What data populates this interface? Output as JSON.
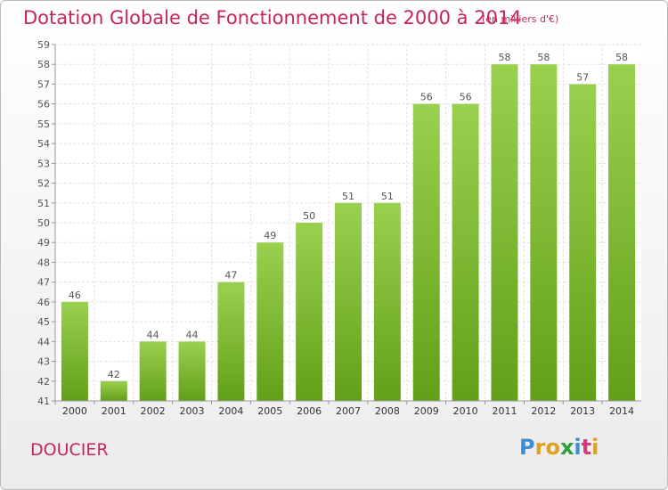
{
  "page": {
    "title": "Dotation Globale de Fonctionnement de 2000 à 2014",
    "subtitle": "(en milliers d'€)",
    "commune": "DOUCIER",
    "logo": {
      "letters": [
        "P",
        "r",
        "o",
        "x",
        "i",
        "t",
        "i"
      ],
      "colors": [
        "#3a8fd6",
        "#e0a020",
        "#e0a020",
        "#2e9e3a",
        "#3a8fd6",
        "#d63a7a",
        "#e0a020"
      ]
    }
  },
  "chart_data": {
    "type": "bar",
    "title": "Dotation Globale de Fonctionnement de 2000 à 2014",
    "subtitle": "(en milliers d'€)",
    "categories": [
      "2000",
      "2001",
      "2002",
      "2003",
      "2004",
      "2005",
      "2006",
      "2007",
      "2008",
      "2009",
      "2010",
      "2011",
      "2012",
      "2013",
      "2014"
    ],
    "values": [
      46,
      42,
      44,
      44,
      47,
      49,
      50,
      51,
      51,
      56,
      56,
      58,
      58,
      57,
      58
    ],
    "data_labels": [
      "46",
      "42",
      "44",
      "44",
      "47",
      "49",
      "50",
      "51",
      "51",
      "56",
      "56",
      "58",
      "58",
      "57",
      "58"
    ],
    "ylim": [
      41,
      59
    ],
    "yticks": [
      "41",
      "42",
      "43",
      "44",
      "45",
      "46",
      "47",
      "48",
      "49",
      "50",
      "51",
      "52",
      "53",
      "54",
      "55",
      "56",
      "57",
      "58",
      "59"
    ],
    "xlabel": "",
    "ylabel": "",
    "grid": true,
    "legend": "none",
    "colors": {
      "bar_top": "#9ad04f",
      "bar_bottom": "#62a019",
      "grid": "#e2e2e2",
      "axis": "#999999",
      "label": "#555555"
    }
  }
}
